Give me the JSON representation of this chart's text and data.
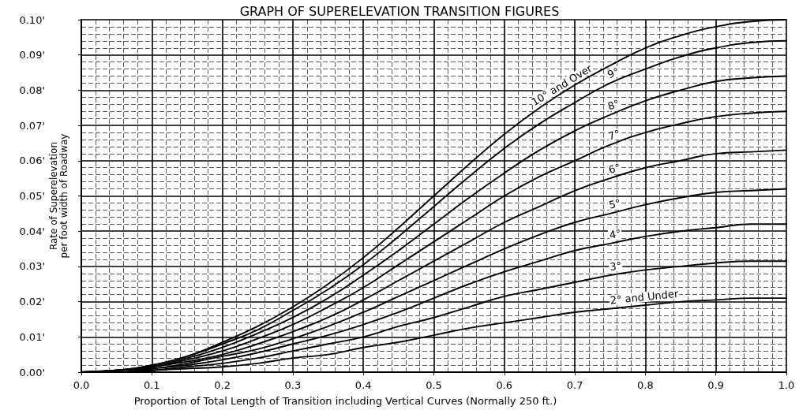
{
  "chart_data": {
    "type": "line",
    "title": "GRAPH OF SUPERELEVATION TRANSITION FIGURES",
    "xlabel": "Proportion of Total Length of Transition including Vertical Curves (Normally 250 ft.)",
    "ylabel": "Rate of Superelevation per foot width of Roadway",
    "x": [
      0,
      0.05,
      0.1,
      0.15,
      0.2,
      0.25,
      0.3,
      0.35,
      0.4,
      0.45,
      0.5,
      0.55,
      0.6,
      0.65,
      0.7,
      0.75,
      0.8,
      0.85,
      0.9,
      0.95,
      1.0
    ],
    "series": [
      {
        "name": "10° and Over",
        "color": "#000000",
        "values": [
          0,
          0.0005,
          0.002,
          0.0045,
          0.0085,
          0.013,
          0.0185,
          0.025,
          0.0325,
          0.041,
          0.05,
          0.059,
          0.0675,
          0.075,
          0.0815,
          0.087,
          0.092,
          0.0955,
          0.098,
          0.0995,
          0.1
        ]
      },
      {
        "name": "9°",
        "color": "#000000",
        "values": [
          0,
          0.0005,
          0.002,
          0.0045,
          0.008,
          0.012,
          0.0175,
          0.0235,
          0.0305,
          0.0385,
          0.047,
          0.0555,
          0.0635,
          0.0705,
          0.0765,
          0.082,
          0.086,
          0.0895,
          0.092,
          0.0935,
          0.094
        ]
      },
      {
        "name": "8°",
        "color": "#000000",
        "values": [
          0,
          0.0005,
          0.0015,
          0.004,
          0.007,
          0.011,
          0.0155,
          0.021,
          0.0275,
          0.0345,
          0.042,
          0.0495,
          0.0565,
          0.063,
          0.0685,
          0.073,
          0.077,
          0.08,
          0.0825,
          0.0835,
          0.084
        ]
      },
      {
        "name": "7°",
        "color": "#000000",
        "values": [
          0,
          0.0005,
          0.0015,
          0.0035,
          0.006,
          0.0095,
          0.0135,
          0.0185,
          0.024,
          0.0305,
          0.037,
          0.0435,
          0.05,
          0.0555,
          0.06,
          0.0645,
          0.068,
          0.0705,
          0.0725,
          0.0735,
          0.074
        ]
      },
      {
        "name": "6°",
        "color": "#000000",
        "values": [
          0,
          0.0005,
          0.0015,
          0.003,
          0.005,
          0.008,
          0.0115,
          0.0155,
          0.0205,
          0.026,
          0.0315,
          0.037,
          0.0425,
          0.047,
          0.0515,
          0.055,
          0.058,
          0.06,
          0.062,
          0.0625,
          0.063
        ]
      },
      {
        "name": "5°",
        "color": "#000000",
        "values": [
          0,
          0.0005,
          0.001,
          0.0025,
          0.0045,
          0.0065,
          0.0095,
          0.013,
          0.017,
          0.0215,
          0.026,
          0.0305,
          0.035,
          0.039,
          0.0425,
          0.045,
          0.0475,
          0.0495,
          0.051,
          0.0515,
          0.052
        ]
      },
      {
        "name": "4°",
        "color": "#000000",
        "values": [
          0,
          0,
          0.001,
          0.002,
          0.0035,
          0.0055,
          0.008,
          0.0105,
          0.0135,
          0.017,
          0.021,
          0.025,
          0.0285,
          0.0315,
          0.0345,
          0.0365,
          0.0385,
          0.04,
          0.041,
          0.042,
          0.042
        ]
      },
      {
        "name": "3°",
        "color": "#000000",
        "values": [
          0,
          0,
          0.0005,
          0.0015,
          0.0025,
          0.004,
          0.006,
          0.008,
          0.01,
          0.013,
          0.0155,
          0.0185,
          0.0215,
          0.0235,
          0.0255,
          0.0275,
          0.029,
          0.03,
          0.031,
          0.0315,
          0.0315
        ]
      },
      {
        "name": "2° and Under",
        "color": "#000000",
        "values": [
          0,
          0,
          0.0005,
          0.001,
          0.0015,
          0.0025,
          0.004,
          0.005,
          0.007,
          0.0085,
          0.0105,
          0.0125,
          0.014,
          0.0155,
          0.017,
          0.018,
          0.019,
          0.02,
          0.0205,
          0.021,
          0.021
        ]
      }
    ],
    "xlim": [
      0,
      1.0
    ],
    "xticks": [
      {
        "value": 0,
        "label": "0.0"
      },
      0.1,
      0.2,
      0.3,
      0.4,
      0.5,
      0.6,
      0.7,
      0.8,
      0.9,
      {
        "value": 1.0,
        "label": "1.0"
      }
    ],
    "ylim": [
      0,
      0.1
    ],
    "yticks": [
      {
        "value": 0,
        "label": "0.00'"
      },
      {
        "value": 0.01,
        "label": "0.01'"
      },
      {
        "value": 0.02,
        "label": "0.02'"
      },
      {
        "value": 0.03,
        "label": "0.03'"
      },
      {
        "value": 0.04,
        "label": "0.04'"
      },
      {
        "value": 0.05,
        "label": "0.05'"
      },
      {
        "value": 0.06,
        "label": "0.06'"
      },
      {
        "value": 0.07,
        "label": "0.07'"
      },
      {
        "value": 0.08,
        "label": "0.08'"
      },
      {
        "value": 0.09,
        "label": "0.09'"
      },
      {
        "value": 0.1,
        "label": "0.10'"
      }
    ],
    "grid": true,
    "marker": "none",
    "line_style": "solid"
  }
}
